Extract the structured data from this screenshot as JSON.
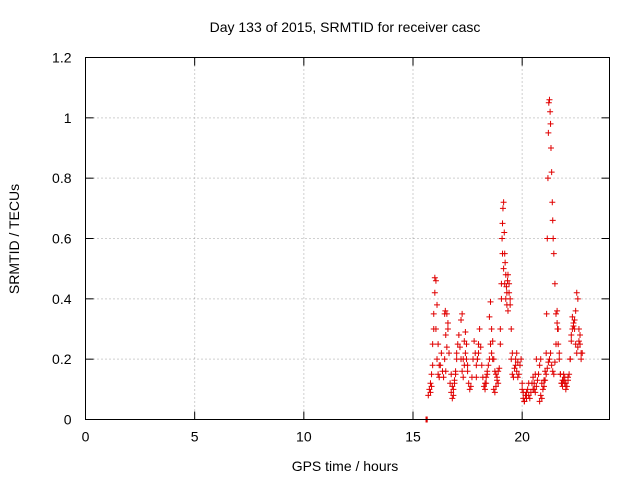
{
  "chart_data": {
    "type": "scatter",
    "title": "Day 133 of 2015, SRMTID for receiver casc",
    "xlabel": "GPS time / hours",
    "ylabel": "SRMTID / TECUs",
    "xlim": [
      0,
      24
    ],
    "ylim": [
      0,
      1.2
    ],
    "xticks": [
      0,
      5,
      10,
      15,
      20
    ],
    "xtick_labels": [
      "0",
      "5",
      "10",
      "15",
      "20"
    ],
    "yticks": [
      0,
      0.2,
      0.4,
      0.6,
      0.8,
      1.0,
      1.2
    ],
    "ytick_labels": [
      "0",
      "0.2",
      "0.4",
      "0.6",
      "0.8",
      "1",
      "1.2"
    ],
    "grid": true,
    "marker": "+",
    "series": [
      {
        "name": "casc",
        "color": "#e00000",
        "x": [
          15.6,
          15.65,
          15.7,
          15.75,
          15.8,
          15.85,
          15.9,
          15.95,
          16.0,
          16.05,
          16.1,
          16.15,
          16.2,
          16.25,
          16.3,
          16.35,
          16.4,
          16.45,
          16.5,
          16.55,
          16.6,
          16.65,
          16.7,
          16.75,
          16.8,
          16.85,
          16.9,
          16.95,
          17.0,
          17.05,
          17.1,
          17.15,
          17.2,
          17.25,
          17.3,
          17.35,
          17.4,
          17.45,
          17.5,
          17.55,
          17.6,
          17.65,
          17.7,
          17.75,
          17.8,
          17.85,
          17.9,
          17.95,
          18.0,
          18.05,
          18.1,
          18.15,
          18.2,
          18.25,
          18.3,
          18.35,
          18.4,
          18.45,
          18.5,
          18.55,
          18.6,
          18.65,
          18.7,
          18.75,
          18.8,
          18.85,
          18.9,
          18.95,
          19.0,
          19.05,
          19.1,
          19.15,
          19.2,
          19.25,
          19.3,
          19.35,
          19.4,
          19.45,
          19.5,
          19.55,
          19.6,
          19.65,
          19.7,
          19.75,
          19.8,
          19.85,
          19.9,
          19.95,
          20.0,
          20.05,
          20.1,
          20.15,
          20.2,
          20.25,
          20.3,
          20.35,
          20.4,
          20.45,
          20.5,
          20.55,
          20.6,
          20.65,
          20.7,
          20.75,
          20.8,
          20.85,
          20.9,
          20.95,
          21.0,
          21.05,
          21.1,
          21.15,
          21.2,
          21.25,
          21.3,
          21.35,
          21.4,
          21.45,
          21.5,
          21.55,
          21.6,
          21.65,
          21.7,
          21.75,
          21.8,
          21.85,
          21.9,
          21.95,
          22.0,
          22.05,
          22.1,
          22.15,
          22.2,
          22.25,
          22.3,
          22.35,
          22.4,
          22.45,
          22.5,
          22.55,
          22.6,
          22.65,
          22.7,
          15.6,
          15.62,
          15.8,
          15.85,
          15.9,
          15.95,
          16.0,
          16.05,
          16.1,
          16.15,
          16.2,
          16.5,
          16.55,
          16.6,
          16.75,
          16.8,
          16.85,
          16.9,
          16.95,
          17.0,
          17.3,
          17.35,
          17.4,
          17.45,
          17.5,
          17.9,
          17.95,
          18.0,
          18.3,
          18.35,
          18.4,
          18.5,
          18.55,
          18.6,
          18.65,
          19.0,
          19.05,
          19.08,
          19.1,
          19.12,
          19.15,
          19.18,
          19.2,
          19.22,
          19.25,
          19.28,
          19.3,
          19.33,
          19.35,
          19.4,
          19.45,
          19.5,
          19.55,
          20.0,
          20.05,
          20.1,
          20.2,
          20.3,
          20.5,
          20.55,
          20.6,
          20.65,
          21.0,
          21.05,
          21.1,
          21.12,
          21.15,
          21.18,
          21.2,
          21.22,
          21.25,
          21.28,
          21.3,
          21.32,
          21.35,
          21.38,
          21.4,
          21.42,
          21.45,
          21.5,
          21.55,
          21.6,
          21.62,
          21.65,
          21.7,
          21.75,
          21.8,
          22.0,
          22.1,
          22.2,
          22.25,
          22.3,
          22.35,
          22.4,
          22.45,
          22.5,
          22.55,
          22.6,
          22.65,
          22.7,
          22.75,
          16.45,
          16.48,
          17.2,
          17.25,
          18.7,
          18.75,
          18.8,
          18.85,
          18.9,
          19.7,
          19.75,
          19.8,
          20.8,
          20.85,
          20.9,
          21.85,
          21.9,
          21.95
        ],
        "y": [
          0.0,
          0.0,
          0.08,
          0.1,
          0.12,
          0.15,
          0.25,
          0.35,
          0.42,
          0.3,
          0.2,
          0.15,
          0.14,
          0.18,
          0.22,
          0.16,
          0.14,
          0.2,
          0.28,
          0.35,
          0.32,
          0.22,
          0.12,
          0.09,
          0.07,
          0.1,
          0.13,
          0.16,
          0.2,
          0.25,
          0.28,
          0.24,
          0.2,
          0.16,
          0.14,
          0.18,
          0.22,
          0.2,
          0.16,
          0.12,
          0.1,
          0.11,
          0.14,
          0.2,
          0.26,
          0.22,
          0.18,
          0.2,
          0.25,
          0.3,
          0.24,
          0.18,
          0.14,
          0.11,
          0.1,
          0.12,
          0.15,
          0.18,
          0.2,
          0.25,
          0.3,
          0.26,
          0.2,
          0.16,
          0.15,
          0.13,
          0.12,
          0.17,
          0.25,
          0.4,
          0.55,
          0.5,
          0.45,
          0.4,
          0.38,
          0.36,
          0.45,
          0.4,
          0.2,
          0.15,
          0.14,
          0.17,
          0.18,
          0.16,
          0.14,
          0.15,
          0.18,
          0.2,
          0.1,
          0.07,
          0.06,
          0.08,
          0.09,
          0.1,
          0.08,
          0.07,
          0.09,
          0.12,
          0.14,
          0.1,
          0.09,
          0.11,
          0.13,
          0.15,
          0.18,
          0.2,
          0.12,
          0.1,
          0.11,
          0.13,
          0.15,
          0.17,
          0.19,
          0.2,
          0.22,
          0.18,
          0.16,
          0.15,
          0.19,
          0.25,
          0.32,
          0.3,
          0.22,
          0.15,
          0.12,
          0.11,
          0.13,
          0.14,
          0.12,
          0.11,
          0.13,
          0.15,
          0.2,
          0.28,
          0.34,
          0.32,
          0.3,
          0.25,
          0.22,
          0.24,
          0.26,
          0.28,
          0.22,
          0.0,
          0.0,
          0.09,
          0.11,
          0.18,
          0.3,
          0.47,
          0.46,
          0.38,
          0.25,
          0.18,
          0.16,
          0.24,
          0.3,
          0.15,
          0.11,
          0.08,
          0.12,
          0.15,
          0.22,
          0.2,
          0.26,
          0.29,
          0.25,
          0.18,
          0.14,
          0.2,
          0.22,
          0.12,
          0.14,
          0.16,
          0.34,
          0.39,
          0.22,
          0.2,
          0.3,
          0.45,
          0.6,
          0.65,
          0.7,
          0.72,
          0.62,
          0.55,
          0.52,
          0.48,
          0.44,
          0.42,
          0.46,
          0.48,
          0.42,
          0.38,
          0.3,
          0.22,
          0.12,
          0.09,
          0.06,
          0.07,
          0.12,
          0.1,
          0.12,
          0.15,
          0.2,
          0.13,
          0.16,
          0.22,
          0.35,
          0.6,
          0.8,
          0.95,
          1.05,
          1.06,
          1.02,
          0.98,
          0.9,
          0.82,
          0.72,
          0.66,
          0.6,
          0.55,
          0.45,
          0.35,
          0.36,
          0.3,
          0.25,
          0.2,
          0.15,
          0.12,
          0.1,
          0.14,
          0.2,
          0.26,
          0.3,
          0.31,
          0.33,
          0.36,
          0.42,
          0.4,
          0.3,
          0.25,
          0.2,
          0.22,
          0.35,
          0.36,
          0.33,
          0.35,
          0.1,
          0.09,
          0.11,
          0.14,
          0.16,
          0.2,
          0.22,
          0.19,
          0.06,
          0.08,
          0.07,
          0.13,
          0.15,
          0.12
        ]
      }
    ]
  }
}
